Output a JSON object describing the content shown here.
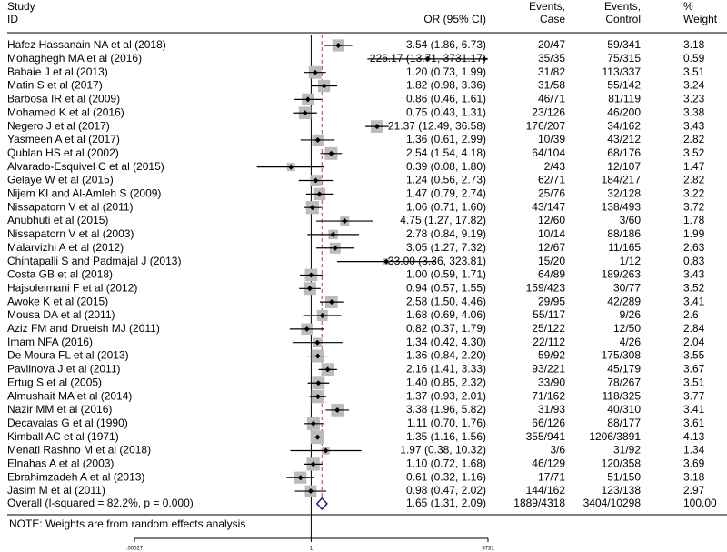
{
  "chart_data": {
    "type": "forest",
    "header": {
      "study": [
        "Study",
        "ID"
      ],
      "ci": "OR (95% CI)",
      "case": [
        "Events,",
        "Case"
      ],
      "control": [
        "Events,",
        "Control"
      ],
      "weight": [
        "%",
        "Weight"
      ]
    },
    "studies": [
      "Hafez Hassanain NA et al (2018)",
      "Mohaghegh MA et al  (2016)",
      "Babaie J et al (2013)",
      "Matin S et al (2017)",
      "Barbosa IR et al (2009)",
      "Mohamed K et al (2016)",
      "Negero J et al (2017)",
      "Yasmeen A et al (2017)",
      "Qublan HS et al (2002)",
      "Alvarado-Esquivel C et al (2015)",
      "Gelaye W et al (2015)",
      "Nijem KI and Al-Amleh S (2009)",
      "Nissapatorn V et al (2011)",
      "Anubhuti et al (2015)",
      "Nissapatorn V et al (2003)",
      "Malarvizhi A et al (2012)",
      "Chintapalli S and Padmajal J (2013)",
      "Costa GB et al (2018)",
      "Hajsoleimani F et al (2012)",
      "Awoke K et al (2015)",
      "Mousa DA et al (2011)",
      "Aziz FM and Drueish MJ (2011)",
      "Imam NFA  (2016)",
      "De Moura FL et al (2013)",
      "Pavlinova J et al (2011)",
      "Ertug S et al (2005)",
      "Almushait MA et al (2014)",
      "Nazir MM et al (2016)",
      "Decavalas G et al (1990)",
      "Kimball AC et al (1971)",
      "Menati Rashno M et al (2018)",
      "Elnahas A et al (2003)",
      "Ebrahimzadeh A et al (2013)",
      "Jasim M et al (2011)"
    ],
    "or": [
      3.54,
      226.17,
      1.2,
      1.82,
      0.86,
      0.75,
      21.37,
      1.36,
      2.54,
      0.39,
      1.24,
      1.47,
      1.06,
      4.75,
      2.78,
      3.05,
      33.0,
      1.0,
      0.94,
      2.58,
      1.68,
      0.82,
      1.34,
      1.36,
      2.16,
      1.4,
      1.37,
      3.38,
      1.11,
      1.35,
      1.97,
      1.1,
      0.61,
      0.98
    ],
    "lower": [
      1.86,
      13.71,
      0.73,
      0.98,
      0.46,
      0.43,
      12.49,
      0.61,
      1.54,
      0.08,
      0.56,
      0.79,
      0.71,
      1.27,
      0.84,
      1.27,
      3.36,
      0.59,
      0.57,
      1.5,
      0.69,
      0.37,
      0.42,
      0.84,
      1.41,
      0.85,
      0.93,
      1.96,
      0.7,
      1.16,
      0.38,
      0.72,
      0.32,
      0.47
    ],
    "upper": [
      6.73,
      3731.17,
      1.99,
      3.36,
      1.61,
      1.31,
      36.58,
      2.99,
      4.18,
      1.8,
      2.73,
      2.74,
      1.6,
      17.82,
      9.19,
      7.32,
      323.81,
      1.71,
      1.55,
      4.46,
      4.06,
      1.79,
      4.3,
      2.2,
      3.33,
      2.32,
      2.01,
      5.82,
      1.76,
      1.56,
      10.32,
      1.68,
      1.16,
      2.02
    ],
    "ci_labels": [
      "3.54 (1.86, 6.73)",
      "226.17 (13.71, 3731.17)",
      "1.20 (0.73, 1.99)",
      "1.82 (0.98, 3.36)",
      "0.86 (0.46, 1.61)",
      "0.75 (0.43, 1.31)",
      "21.37 (12.49, 36.58)",
      "1.36 (0.61, 2.99)",
      "2.54 (1.54, 4.18)",
      "0.39 (0.08, 1.80)",
      "1.24 (0.56, 2.73)",
      "1.47 (0.79, 2.74)",
      "1.06 (0.71, 1.60)",
      "4.75 (1.27, 17.82)",
      "2.78 (0.84, 9.19)",
      "3.05 (1.27, 7.32)",
      "33.00 (3.36, 323.81)",
      "1.00 (0.59, 1.71)",
      "0.94 (0.57, 1.55)",
      "2.58 (1.50, 4.46)",
      "1.68 (0.69, 4.06)",
      "0.82 (0.37, 1.79)",
      "1.34 (0.42, 4.30)",
      "1.36 (0.84, 2.20)",
      "2.16 (1.41, 3.33)",
      "1.40 (0.85, 2.32)",
      "1.37 (0.93, 2.01)",
      "3.38 (1.96, 5.82)",
      "1.11 (0.70, 1.76)",
      "1.35 (1.16, 1.56)",
      "1.97 (0.38, 10.32)",
      "1.10 (0.72, 1.68)",
      "0.61 (0.32, 1.16)",
      "0.98 (0.47, 2.02)"
    ],
    "case": [
      "20/47",
      "35/35",
      "31/82",
      "31/58",
      "46/71",
      "23/126",
      "176/207",
      "10/39",
      "64/104",
      "2/43",
      "62/71",
      "25/76",
      "43/147",
      "12/60",
      "10/14",
      "12/67",
      "15/20",
      "64/89",
      "159/423",
      "29/95",
      "55/117",
      "25/122",
      "22/112",
      "59/92",
      "93/221",
      "33/90",
      "71/162",
      "31/93",
      "66/126",
      "355/941",
      "3/6",
      "46/129",
      "17/71",
      "144/162"
    ],
    "control": [
      "59/341",
      "75/315",
      "113/337",
      "55/142",
      "81/119",
      "46/200",
      "34/162",
      "43/212",
      "68/176",
      "12/107",
      "184/217",
      "32/128",
      "138/493",
      "3/60",
      "88/186",
      "11/165",
      "1/12",
      "189/263",
      "30/77",
      "42/289",
      "9/26",
      "12/50",
      "4/26",
      "175/308",
      "45/179",
      "78/267",
      "118/325",
      "40/310",
      "88/177",
      "1206/3891",
      "31/92",
      "120/358",
      "51/150",
      "123/138"
    ],
    "weights": [
      3.18,
      0.59,
      3.51,
      3.24,
      3.23,
      3.38,
      3.43,
      2.82,
      3.52,
      1.47,
      2.82,
      3.22,
      3.72,
      1.78,
      1.99,
      2.63,
      0.83,
      3.43,
      3.52,
      3.41,
      2.6,
      2.84,
      2.04,
      3.55,
      3.67,
      3.51,
      3.77,
      3.41,
      3.61,
      4.13,
      1.34,
      3.69,
      3.18,
      2.97
    ],
    "overall": {
      "label": "Overall  (I-squared = 82.2%, p = 0.000)",
      "or": 1.65,
      "lower": 1.31,
      "upper": 2.09,
      "ci_label": "1.65 (1.31, 2.09)",
      "case": "1889/4318",
      "control": "3404/10298",
      "weight": 100,
      "weight_label": "100.00"
    },
    "note": "NOTE: Weights are from random effects analysis",
    "xlim": [
      0.00027,
      3731
    ],
    "log_x": true,
    "xticks": [
      {
        "value": 0.00027,
        "label": ".00027"
      },
      1,
      3731
    ],
    "box_color": "#bbbbbb",
    "diamond_color": "#1a237e",
    "overall_line_color": "#c0392b"
  }
}
